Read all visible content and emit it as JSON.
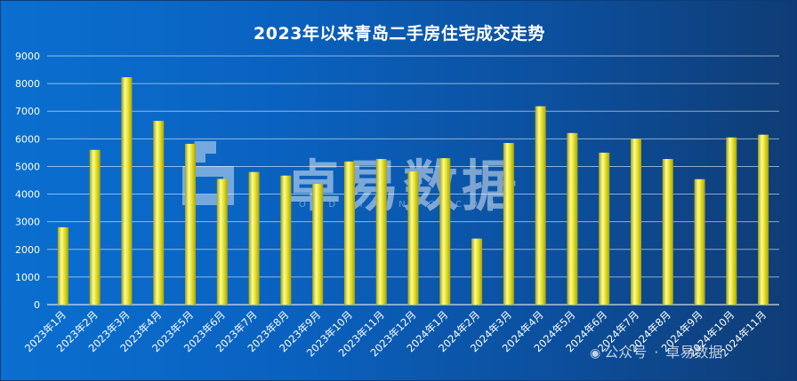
{
  "chart_data": {
    "type": "bar",
    "title": "2023年以来青岛二手房住宅成交走势",
    "categories": [
      "2023年1月",
      "2023年2月",
      "2023年3月",
      "2023年4月",
      "2023年5月",
      "2023年6月",
      "2023年7月",
      "2023年8月",
      "2023年9月",
      "2023年10月",
      "2023年11月",
      "2023年12月",
      "2024年1月",
      "2024年2月",
      "2024年3月",
      "2024年4月",
      "2024年5月",
      "2024年6月",
      "2024年7月",
      "2024年8月",
      "2024年9月",
      "2024年10月",
      "2024年11月"
    ],
    "values": [
      2800,
      5600,
      8230,
      6650,
      5820,
      4550,
      4800,
      4670,
      4370,
      5180,
      5270,
      4820,
      5300,
      2390,
      5850,
      7180,
      6210,
      5500,
      6000,
      5270,
      4540,
      6050,
      6150
    ],
    "ylim": [
      0,
      9000
    ],
    "yticks": [
      0,
      1000,
      2000,
      3000,
      4000,
      5000,
      6000,
      7000,
      8000,
      9000
    ],
    "grid": true,
    "bar_color": "#e8e62a",
    "bar_highlight": "#fbfb9a",
    "bar_shadow": "#a9a20e"
  },
  "watermark": {
    "brand": "卓易数据",
    "sub": "JOYDATAINFO.COM"
  },
  "footer": {
    "account_label": "公众号",
    "account_name": "卓易数据"
  }
}
